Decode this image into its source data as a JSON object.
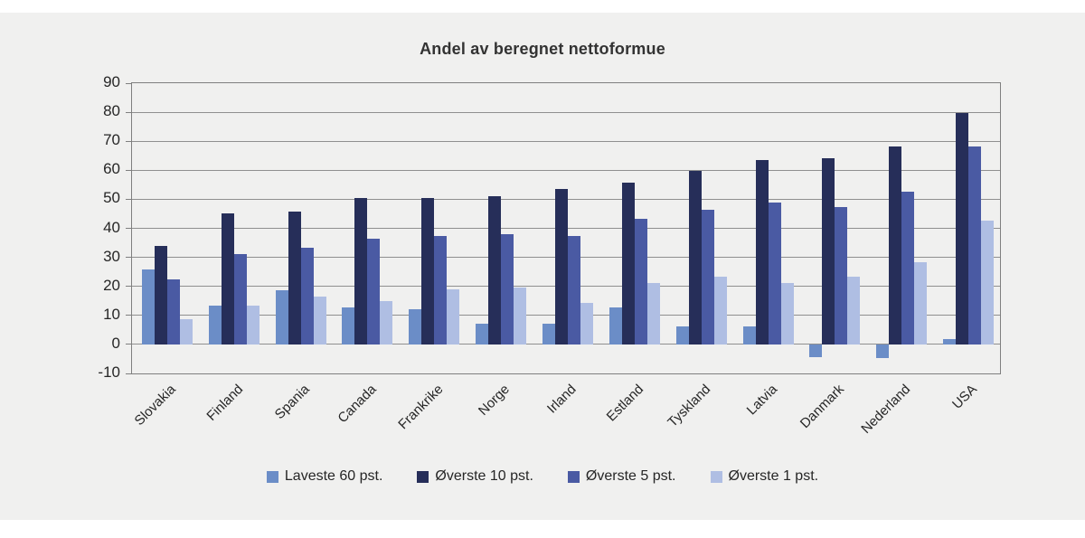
{
  "figure": {
    "title": "Andel av beregnet nettoformue"
  },
  "chart_data": {
    "type": "bar",
    "title": "Andel av beregnet nettoformue",
    "categories": [
      "Slovakia",
      "Finland",
      "Spania",
      "Canada",
      "Frankrike",
      "Norge",
      "Irland",
      "Estland",
      "Tyskland",
      "Latvia",
      "Danmark",
      "Nederland",
      "USA"
    ],
    "series": [
      {
        "name": "Laveste 60 pst.",
        "color": "#6b8dc7",
        "values": [
          25.8,
          13.3,
          18.8,
          12.6,
          12.0,
          7.1,
          7.1,
          12.6,
          6.3,
          6.3,
          -4.4,
          -4.8,
          1.9
        ]
      },
      {
        "name": "Øverste 10 pst.",
        "color": "#262e59",
        "values": [
          34.0,
          45.0,
          45.7,
          50.4,
          50.4,
          51.2,
          53.4,
          55.7,
          59.7,
          63.5,
          64.2,
          68.2,
          79.8
        ]
      },
      {
        "name": "Øverste 5 pst.",
        "color": "#4a5aa3",
        "values": [
          22.4,
          31.1,
          33.4,
          36.4,
          37.2,
          37.9,
          37.2,
          43.3,
          46.4,
          48.8,
          47.4,
          52.7,
          68.1
        ]
      },
      {
        "name": "Øverste 1 pst.",
        "color": "#afbee3",
        "values": [
          8.6,
          13.3,
          16.4,
          15.0,
          18.9,
          19.6,
          14.4,
          21.1,
          23.3,
          21.2,
          23.3,
          28.2,
          42.7
        ]
      }
    ],
    "ylim": [
      -10,
      90
    ],
    "y_ticks": [
      90,
      80,
      70,
      60,
      50,
      40,
      30,
      20,
      10,
      0,
      -10
    ],
    "xlabel": "",
    "ylabel": "",
    "grid": true,
    "legend_position": "bottom"
  },
  "style_colors": {
    "panel_background": "#f0f0ef",
    "page_background": "#ffffff",
    "gridline": "#8f8f8f",
    "axis_border": "#7f7f7f",
    "text": "#262626",
    "title_text": "#333333"
  }
}
